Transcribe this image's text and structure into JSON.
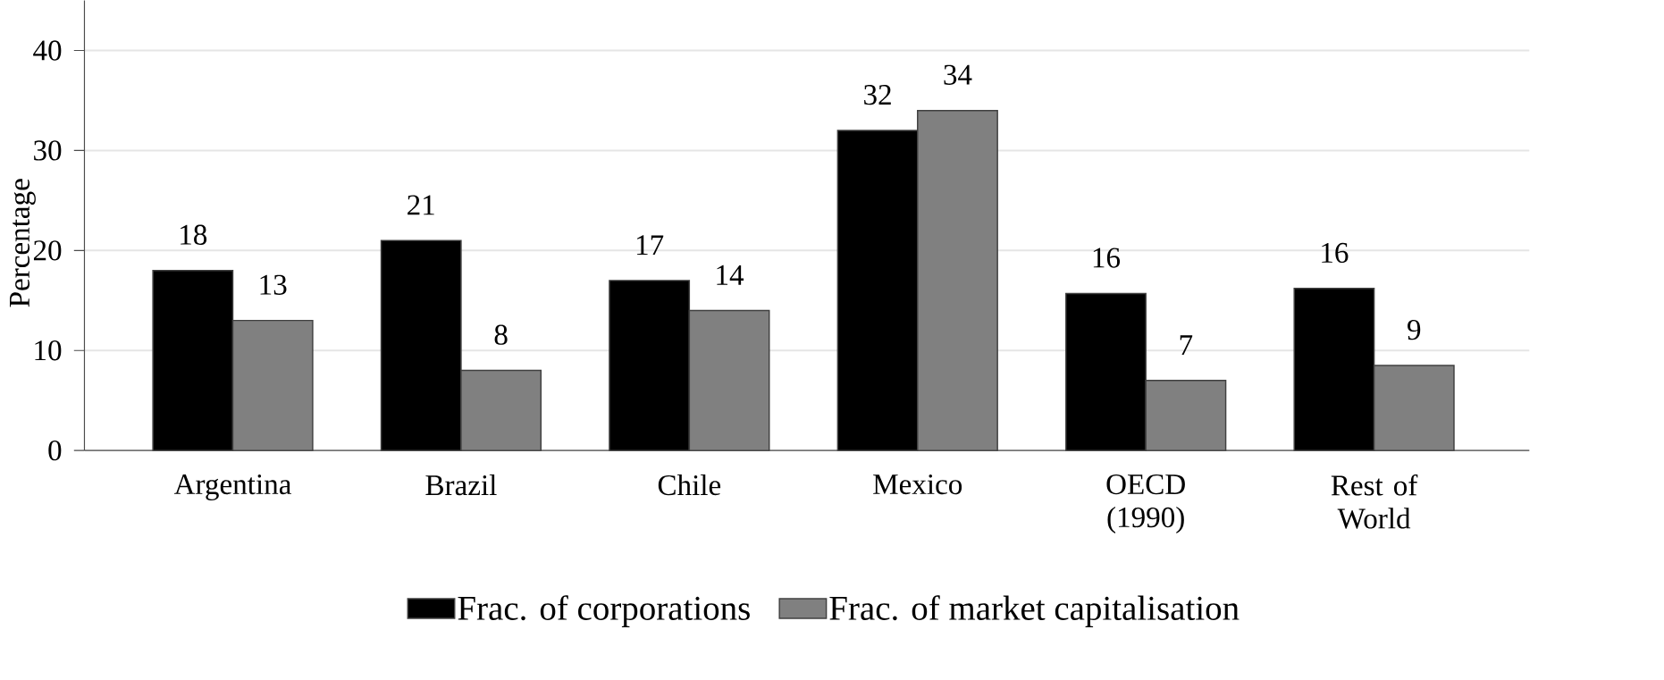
{
  "chart_data": {
    "type": "bar",
    "ylabel": "Percentage",
    "categories": [
      "Argentina",
      "Brazil",
      "Chile",
      "Mexico",
      "OECD (1990)",
      "Rest of World"
    ],
    "series": [
      {
        "name": "Frac. of corporations",
        "color": "#000000",
        "values": [
          18,
          21,
          17,
          32,
          15.7,
          16.2
        ],
        "value_labels": [
          "18",
          "21",
          "17",
          "32",
          "16",
          "16"
        ]
      },
      {
        "name": "Frac. of market capitalisation",
        "color": "#808080",
        "values": [
          13,
          8,
          14,
          34,
          7,
          8.5
        ],
        "value_labels": [
          "13",
          "8",
          "14",
          "34",
          "7",
          "9"
        ]
      }
    ],
    "ylim": [
      0,
      45
    ],
    "yticks": [
      0,
      10,
      20,
      30,
      40
    ],
    "grid": "y",
    "legend": "bottom"
  }
}
